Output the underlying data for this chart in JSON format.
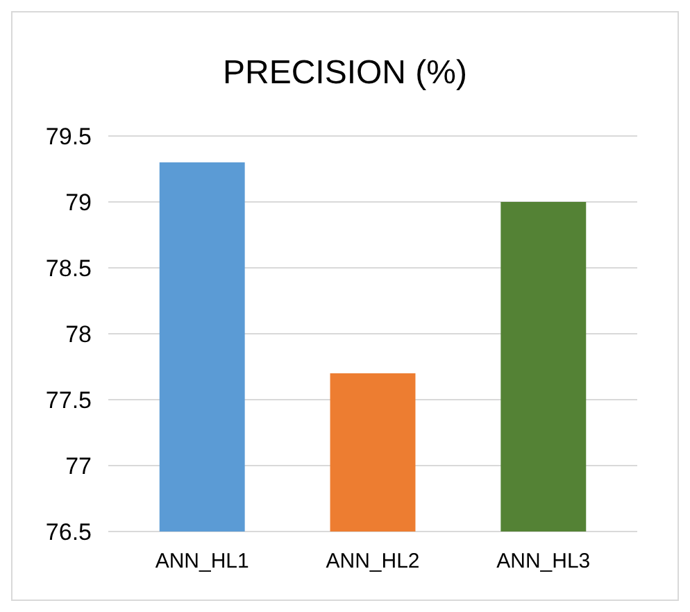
{
  "chart_data": {
    "type": "bar",
    "title": "PRECISION (%)",
    "categories": [
      "ANN_HL1",
      "ANN_HL2",
      "ANN_HL3"
    ],
    "values": [
      79.3,
      77.7,
      79.0
    ],
    "colors": [
      "#5b9bd5",
      "#ed7d31",
      "#548235"
    ],
    "ylim": [
      76.5,
      79.5
    ],
    "yticks": [
      76.5,
      77,
      77.5,
      78,
      78.5,
      79,
      79.5
    ],
    "grid": "y"
  }
}
